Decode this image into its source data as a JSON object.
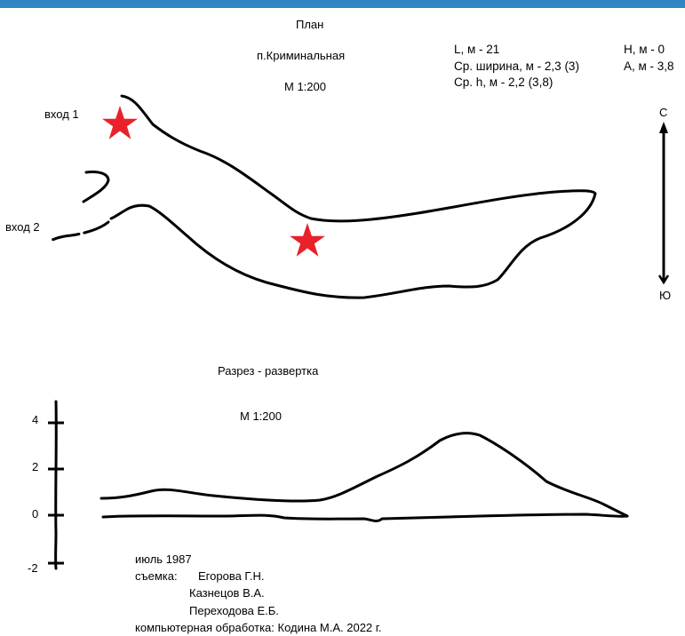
{
  "header": {
    "accent_color": "#2f86c2"
  },
  "plan": {
    "title": "План",
    "cave_name": "п.Криминальная",
    "scale": "М 1:200",
    "entrance_1": "вход 1",
    "entrance_2": "вход 2",
    "marker_color": "#e8212a"
  },
  "stats": {
    "length": "L, м - 21",
    "avg_width": "Ср. ширина, м - 2,3 (3)",
    "avg_height": "Ср. h, м - 2,2 (3,8)",
    "depth": "H, м - 0",
    "amplitude": "А, м - 3,8"
  },
  "compass": {
    "north": "С",
    "south": "Ю"
  },
  "section": {
    "title": "Разрез - развертка",
    "scale": "М 1:200",
    "axis_ticks": [
      "4",
      "2",
      "0",
      "-2"
    ]
  },
  "credits": {
    "date": "июль 1987",
    "survey_label": "съемка:",
    "surveyor_1": "Егорова Г.Н.",
    "surveyor_2": "Казнецов В.А.",
    "surveyor_3": "Переходова Е.Б.",
    "processing": "компьютерная обработка: Кодина М.А. 2022 г."
  }
}
